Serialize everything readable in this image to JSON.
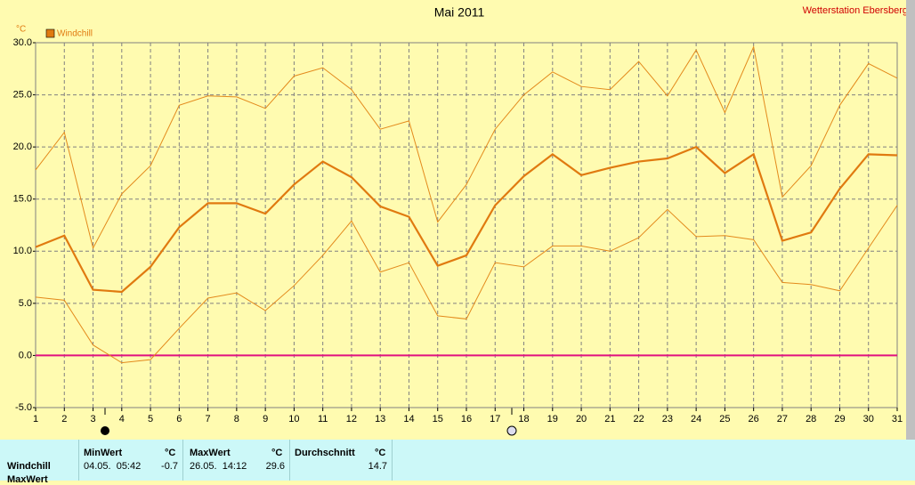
{
  "chart_data": {
    "type": "line",
    "title": "Mai 2011",
    "station": "Wetterstation Ebersberg",
    "y_unit": "°C",
    "x": [
      1,
      2,
      3,
      4,
      5,
      6,
      7,
      8,
      9,
      10,
      11,
      12,
      13,
      14,
      15,
      16,
      17,
      18,
      19,
      20,
      21,
      22,
      23,
      24,
      25,
      26,
      27,
      28,
      29,
      30,
      31
    ],
    "series": [
      {
        "color": "#e38a1c",
        "width": 1,
        "values": [
          17.8,
          21.4,
          10.3,
          15.5,
          18.2,
          24.0,
          24.9,
          24.8,
          23.7,
          26.8,
          27.6,
          25.5,
          21.7,
          22.5,
          12.8,
          16.4,
          21.7,
          25.0,
          27.2,
          25.8,
          25.5,
          28.2,
          24.9,
          29.3,
          23.3,
          29.6,
          15.2,
          18.2,
          24.0,
          28.0,
          26.6
        ]
      },
      {
        "name": "Windchill",
        "color": "#e07a10",
        "width": 2.2,
        "values": [
          10.4,
          11.5,
          6.3,
          6.1,
          8.5,
          12.3,
          14.6,
          14.6,
          13.6,
          16.4,
          18.6,
          17.1,
          14.3,
          13.3,
          8.6,
          9.6,
          14.4,
          17.2,
          19.3,
          17.3,
          18.0,
          18.6,
          18.9,
          20.0,
          17.5,
          19.3,
          11.0,
          11.8,
          16.0,
          19.3,
          19.2
        ]
      },
      {
        "color": "#e38a1c",
        "width": 1,
        "values": [
          5.6,
          5.3,
          1.0,
          -0.7,
          -0.4,
          2.6,
          5.5,
          6.0,
          4.3,
          6.7,
          9.6,
          12.9,
          8.0,
          8.9,
          3.8,
          3.5,
          8.9,
          8.5,
          10.5,
          10.5,
          10.0,
          11.3,
          14.0,
          11.4,
          11.5,
          11.1,
          7.0,
          6.8,
          6.2,
          10.3,
          14.4
        ]
      }
    ],
    "xlim": [
      1,
      31
    ],
    "xticks": [
      1,
      2,
      3,
      4,
      5,
      6,
      7,
      8,
      9,
      10,
      11,
      12,
      13,
      14,
      15,
      16,
      17,
      18,
      19,
      20,
      21,
      22,
      23,
      24,
      25,
      26,
      27,
      28,
      29,
      30,
      31
    ],
    "ylim": [
      -5,
      30
    ],
    "yticks": [
      {
        "value": -5,
        "label": "-5.0"
      },
      {
        "value": 0,
        "label": "0.0"
      },
      {
        "value": 5,
        "label": "5.0"
      },
      {
        "value": 10,
        "label": "10.0"
      },
      {
        "value": 15,
        "label": "15.0"
      },
      {
        "value": 20,
        "label": "20.0"
      },
      {
        "value": 25,
        "label": "25.0"
      },
      {
        "value": 30,
        "label": "30.0"
      }
    ],
    "grid": true,
    "hlines": [
      {
        "value": 0,
        "color": "#e0107f"
      }
    ],
    "legend": "top-left"
  },
  "table": {
    "columns": [
      {
        "header": "MinWert",
        "unit": "°C"
      },
      {
        "header": "MaxWert",
        "unit": "°C"
      },
      {
        "header": "Durchschnitt",
        "unit": "°C"
      }
    ],
    "rows": [
      {
        "label": "Windchill",
        "cells": [
          {
            "time": "04.05.  05:42",
            "value": -0.7
          },
          {
            "time": "26.05.  14:12",
            "value": 29.6
          },
          {
            "value": 14.7
          }
        ]
      },
      {
        "label": "MaxWert"
      }
    ]
  }
}
